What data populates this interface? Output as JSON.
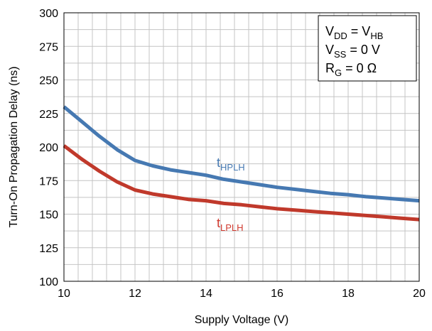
{
  "chart_data": {
    "type": "line",
    "xlabel": "Supply Voltage (V)",
    "ylabel": "Turn-On Propagation Delay (ns)",
    "xlim": [
      10,
      20
    ],
    "ylim": [
      100,
      300
    ],
    "xticks": [
      "10",
      "12",
      "14",
      "16",
      "18",
      "20"
    ],
    "yticks": [
      "100",
      "125",
      "150",
      "175",
      "200",
      "225",
      "250",
      "275",
      "300"
    ],
    "grid": true,
    "minor_grid_x_step": 0.4,
    "minor_grid_y_step": 12.5,
    "series": [
      {
        "name_main": "t",
        "name_sub": "HPLH",
        "color": "#4679b2",
        "x": [
          10,
          10.5,
          11,
          11.5,
          12,
          12.5,
          13,
          13.5,
          14,
          14.5,
          15,
          15.5,
          16,
          16.5,
          17,
          17.5,
          18,
          18.5,
          19,
          19.5,
          20
        ],
        "y": [
          230,
          219,
          208,
          198,
          190,
          186,
          183,
          181,
          179,
          176,
          174,
          172,
          170,
          168.5,
          167,
          165.5,
          164.5,
          163,
          162,
          161,
          160
        ]
      },
      {
        "name_main": "t",
        "name_sub": "LPLH",
        "color": "#c0392b",
        "x": [
          10,
          10.5,
          11,
          11.5,
          12,
          12.5,
          13,
          13.5,
          14,
          14.5,
          15,
          15.5,
          16,
          16.5,
          17,
          17.5,
          18,
          18.5,
          19,
          19.5,
          20
        ],
        "y": [
          201,
          191,
          182,
          174,
          168,
          165,
          163,
          161,
          160,
          158,
          157,
          155.5,
          154,
          153,
          152,
          151,
          150,
          149,
          148,
          147,
          146
        ]
      }
    ],
    "conditions": [
      {
        "main": "V",
        "sub": "DD",
        "eq": " = V",
        "sub2": "HB"
      },
      {
        "main": "V",
        "sub": "SS",
        "eq": " = 0 V",
        "sub2": ""
      },
      {
        "main": "R",
        "sub": "G",
        "eq": " = 0 Ω",
        "sub2": ""
      }
    ]
  }
}
